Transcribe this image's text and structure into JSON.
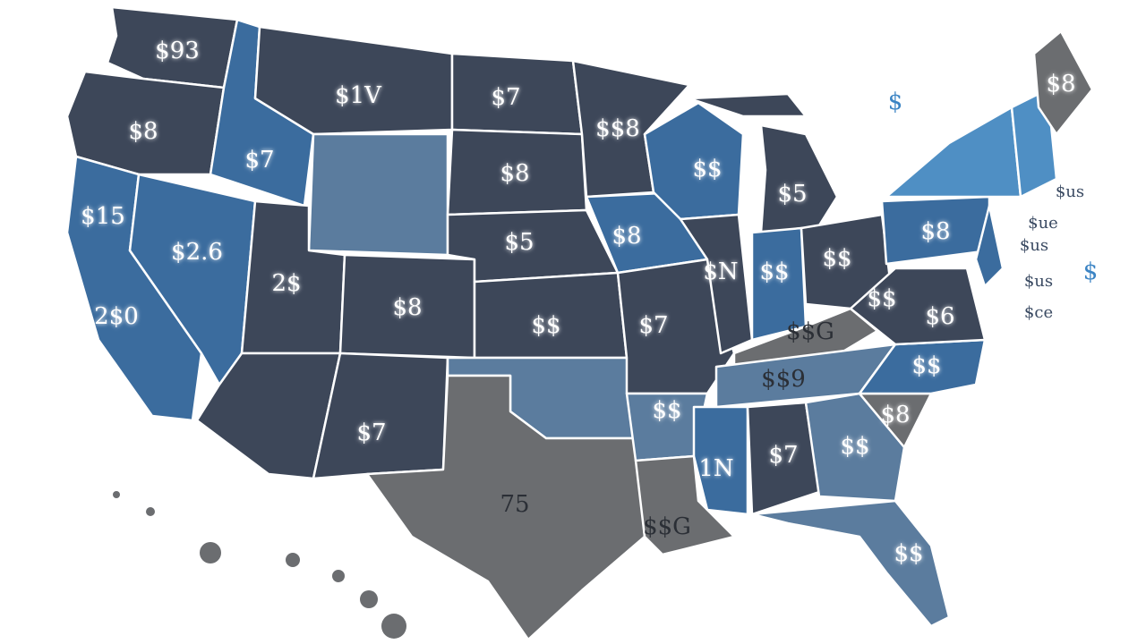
{
  "map_labels": [
    "$93",
    "$1V",
    "$7",
    "$$8",
    "$8",
    "$7",
    "$8",
    "$15",
    "$2.6",
    "$8",
    "$5",
    "2$",
    "$8",
    "2$0",
    "$N",
    "$$",
    "$5",
    "$$",
    "$$",
    "$8",
    "$$",
    "$6",
    "$$G",
    "$$",
    "$7",
    "$$9",
    "$$",
    "$8",
    "$$",
    "$7",
    "1N",
    "$$",
    "$7",
    "75",
    "$$G",
    "$$",
    "$8",
    "$",
    "$us",
    "$ue",
    "$us",
    "$us",
    "$ce",
    "$"
  ]
}
